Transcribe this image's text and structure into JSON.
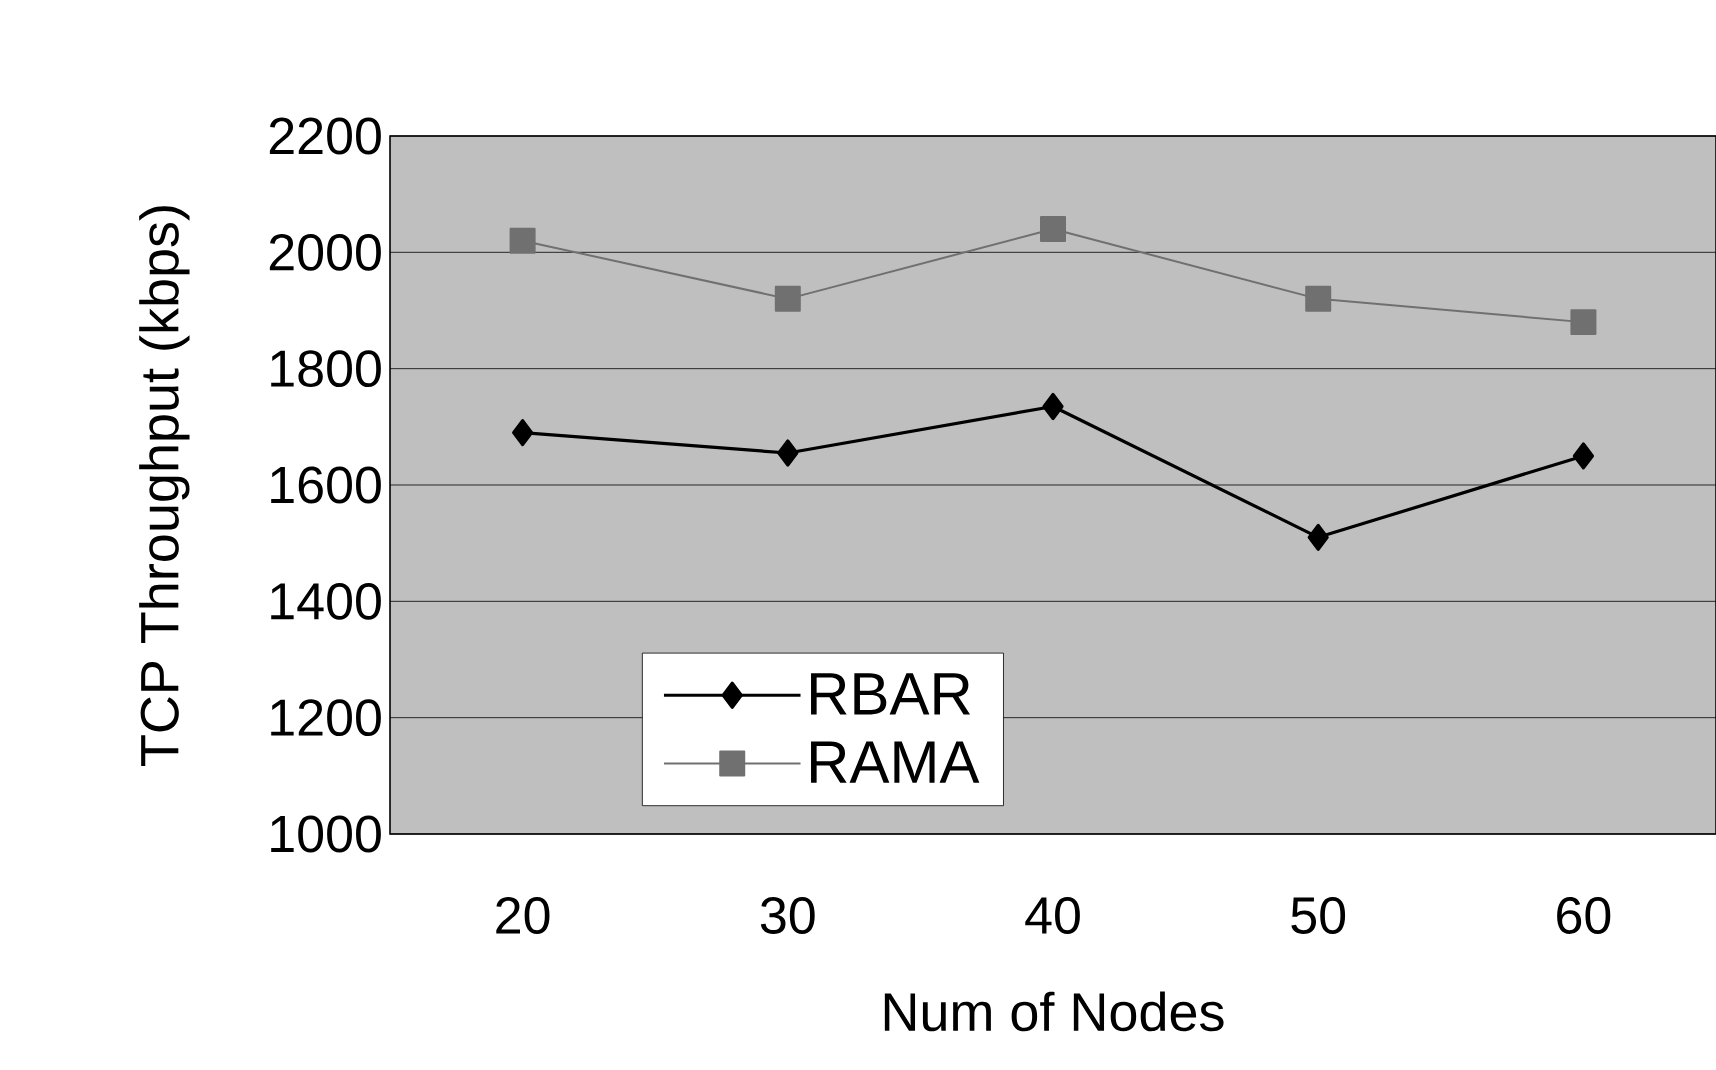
{
  "chart_data": {
    "type": "line",
    "xlabel": "Num of Nodes",
    "ylabel": "TCP Throughput (kbps)",
    "categories": [
      "20",
      "30",
      "40",
      "50",
      "60"
    ],
    "series": [
      {
        "name": "RBAR",
        "color": "#000000",
        "marker": "diamond",
        "values": [
          1690,
          1655,
          1735,
          1510,
          1650
        ]
      },
      {
        "name": "RAMA",
        "color": "#707070",
        "marker": "square",
        "values": [
          2020,
          1920,
          2040,
          1920,
          1880
        ]
      }
    ],
    "ylim": [
      1000,
      2200
    ],
    "yticks": [
      1000,
      1200,
      1400,
      1600,
      1800,
      2000,
      2200
    ],
    "grid": "y",
    "legend": "bottom left"
  }
}
